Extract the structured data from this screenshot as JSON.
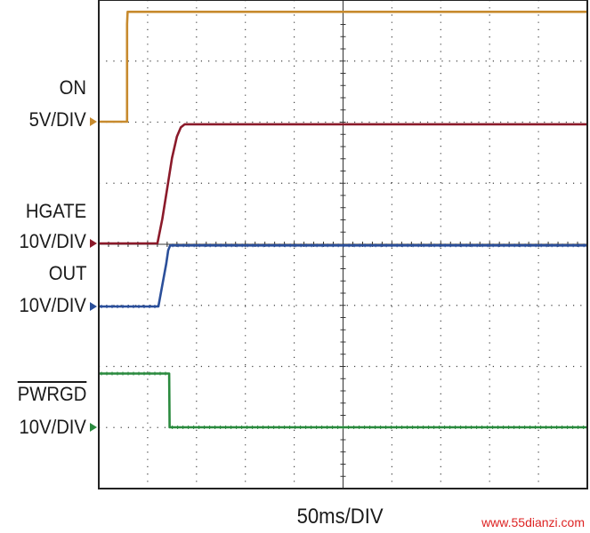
{
  "chart_data": {
    "type": "line",
    "title": "",
    "xlabel": "50ms/DIV",
    "x_unit": "ms",
    "x_divisions": 10,
    "y_divisions": 8,
    "xlim": [
      0,
      500
    ],
    "grid": true,
    "series": [
      {
        "name": "ON",
        "scale": "5V/DIV",
        "color": "#c78a2e",
        "points": [
          [
            0,
            0
          ],
          [
            29,
            0
          ],
          [
            29,
            1.6
          ],
          [
            29.5,
            1.8
          ],
          [
            500,
            1.8
          ]
        ]
      },
      {
        "name": "HGATE",
        "scale": "10V/DIV",
        "color": "#8b1a2a",
        "points": [
          [
            0,
            0
          ],
          [
            60,
            0
          ],
          [
            65,
            0.4
          ],
          [
            70,
            0.9
          ],
          [
            75,
            1.4
          ],
          [
            80,
            1.75
          ],
          [
            84,
            1.9
          ],
          [
            88,
            1.95
          ],
          [
            500,
            1.95
          ]
        ]
      },
      {
        "name": "OUT",
        "scale": "10V/DIV",
        "color": "#2b4f9a",
        "points": [
          [
            0,
            0
          ],
          [
            61,
            0
          ],
          [
            65,
            0.35
          ],
          [
            69,
            0.7
          ],
          [
            71,
            0.92
          ],
          [
            73,
            1.0
          ],
          [
            500,
            1.0
          ]
        ]
      },
      {
        "name": "PWRGD",
        "scale": "10V/DIV",
        "color": "#2a8a3e",
        "points": [
          [
            0,
            0.88
          ],
          [
            72,
            0.88
          ],
          [
            72.5,
            0
          ],
          [
            500,
            0
          ]
        ]
      }
    ]
  },
  "labels": {
    "on_name": "ON",
    "on_scale": "5V/DIV",
    "hgate_name": "HGATE",
    "hgate_scale": "10V/DIV",
    "out_name": "OUT",
    "out_scale": "10V/DIV",
    "pwrgd_name": "PWRGD",
    "pwrgd_scale": "10V/DIV"
  },
  "watermark": "www.55dianzi.com"
}
